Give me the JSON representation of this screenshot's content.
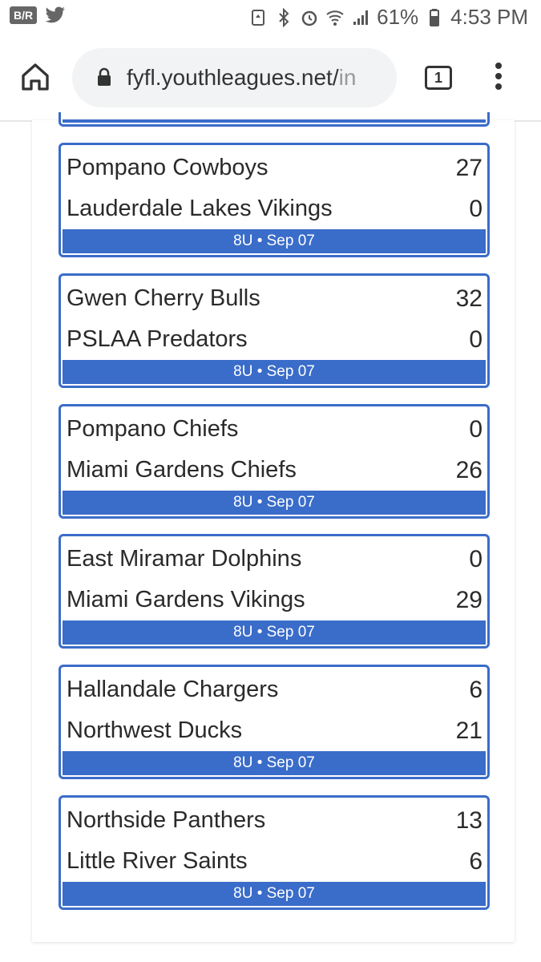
{
  "status_bar": {
    "app_badge": "B/R",
    "battery": "61%",
    "time": "4:53 PM"
  },
  "browser": {
    "url_main": "fyfl.youthleagues.net/",
    "url_faded": "in",
    "tab_count": "1"
  },
  "games": [
    {
      "home": "Pompano Cowboys",
      "home_score": "27",
      "away": "Lauderdale Lakes Vikings",
      "away_score": "0",
      "meta": "8U • Sep 07"
    },
    {
      "home": "Gwen Cherry Bulls",
      "home_score": "32",
      "away": "PSLAA Predators",
      "away_score": "0",
      "meta": "8U • Sep 07"
    },
    {
      "home": "Pompano Chiefs",
      "home_score": "0",
      "away": "Miami Gardens Chiefs",
      "away_score": "26",
      "meta": "8U • Sep 07"
    },
    {
      "home": "East Miramar Dolphins",
      "home_score": "0",
      "away": "Miami Gardens Vikings",
      "away_score": "29",
      "meta": "8U • Sep 07"
    },
    {
      "home": "Hallandale Chargers",
      "home_score": "6",
      "away": "Northwest Ducks",
      "away_score": "21",
      "meta": "8U • Sep 07"
    },
    {
      "home": "Northside Panthers",
      "home_score": "13",
      "away": "Little River Saints",
      "away_score": "6",
      "meta": "8U • Sep 07"
    }
  ],
  "colors": {
    "accent": "#3a6cc9"
  }
}
